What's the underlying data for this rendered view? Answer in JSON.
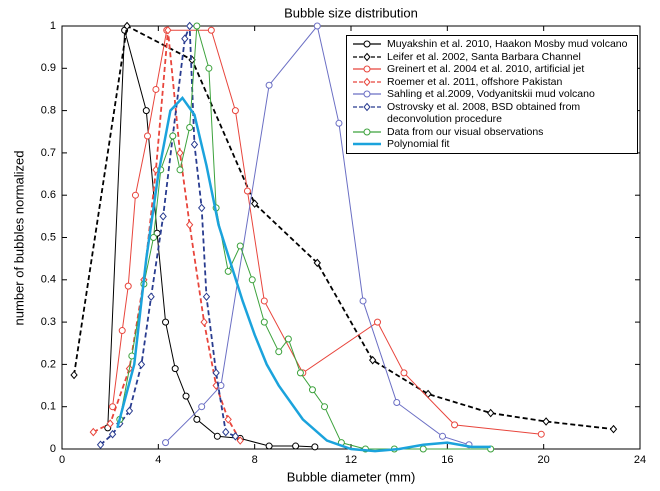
{
  "chart_data": {
    "type": "line",
    "title": "Bubble size distribution",
    "x_label": "Bubble diameter (mm)",
    "y_label": "number of bubbles  normalized",
    "xlim": [
      0,
      24
    ],
    "xticks": [
      0,
      4,
      8,
      12,
      16,
      20,
      24
    ],
    "ylim": [
      0,
      1
    ],
    "yticks": [
      0,
      0.1,
      0.2,
      0.3,
      0.4,
      0.5,
      0.6,
      0.7,
      0.8,
      0.9,
      1
    ],
    "legend": "upper right",
    "series": [
      {
        "name": "Muyakshin et al. 2010, Haakon Mosby mud volcano",
        "color": "#000000",
        "dashed": false,
        "marker": "circle",
        "x": [
          1.9,
          2.6,
          3.5,
          3.95,
          4.3,
          4.7,
          5.15,
          5.6,
          6.45,
          7.4,
          8.6,
          9.7,
          10.5
        ],
        "values": [
          0.05,
          0.99,
          0.8,
          0.51,
          0.3,
          0.19,
          0.125,
          0.07,
          0.03,
          0.025,
          0.007,
          0.007,
          0.005
        ]
      },
      {
        "name": "Leifer et al. 2002, Santa Barbara Channel",
        "color": "#000000",
        "dashed": true,
        "marker": "diamond",
        "x": [
          0.5,
          2.7,
          5.4,
          8.0,
          10.6,
          12.9,
          15.2,
          17.8,
          20.1,
          22.9
        ],
        "values": [
          0.175,
          1.0,
          0.92,
          0.58,
          0.44,
          0.21,
          0.13,
          0.085,
          0.065,
          0.047
        ]
      },
      {
        "name": "Greinert et al. 2004 et al. 2010, artificial jet",
        "color": "#e8453c",
        "dashed": false,
        "marker": "circle",
        "x": [
          2.1,
          2.5,
          2.75,
          3.05,
          3.55,
          3.9,
          4.35,
          6.2,
          7.2,
          7.7,
          8.4,
          10.0,
          13.1,
          14.2,
          16.3,
          19.9
        ],
        "values": [
          0.1,
          0.28,
          0.385,
          0.6,
          0.74,
          0.85,
          0.99,
          0.99,
          0.8,
          0.61,
          0.35,
          0.18,
          0.3,
          0.18,
          0.057,
          0.035
        ]
      },
      {
        "name": "Roemer et al. 2011, offshore Pakistan",
        "color": "#e8453c",
        "dashed": true,
        "marker": "diamond",
        "x": [
          1.3,
          2.0,
          2.8,
          3.4,
          3.9,
          4.4,
          4.9,
          5.3,
          5.9,
          6.4,
          6.9,
          7.4
        ],
        "values": [
          0.04,
          0.06,
          0.19,
          0.4,
          0.66,
          0.99,
          0.7,
          0.53,
          0.3,
          0.15,
          0.07,
          0.02
        ]
      },
      {
        "name": "Sahling et al.2009, Vodyanitskii mud volcano",
        "color": "#6b6fc4",
        "dashed": false,
        "marker": "circle",
        "x": [
          4.3,
          5.8,
          6.6,
          8.6,
          10.6,
          11.5,
          12.5,
          13.9,
          15.8,
          16.9
        ],
        "values": [
          0.015,
          0.1,
          0.15,
          0.86,
          1.0,
          0.77,
          0.35,
          0.11,
          0.03,
          0.01
        ]
      },
      {
        "name": "Ostrovsky et al. 2008, BSD obtained from deconvolution procedure",
        "color": "#283b8f",
        "dashed": true,
        "marker": "diamond",
        "x": [
          1.6,
          2.1,
          2.4,
          2.8,
          3.3,
          3.7,
          4.2,
          4.6,
          5.1,
          5.3,
          5.5,
          5.8,
          6.0,
          6.4,
          6.8,
          7.2
        ],
        "values": [
          0.01,
          0.035,
          0.06,
          0.09,
          0.2,
          0.36,
          0.55,
          0.74,
          0.97,
          1.0,
          0.72,
          0.57,
          0.36,
          0.18,
          0.04,
          0.03
        ]
      },
      {
        "name": "Data from our visual observations",
        "color": "#3ca23c",
        "dashed": false,
        "marker": "circle",
        "x": [
          2.4,
          2.9,
          3.4,
          3.8,
          4.1,
          4.6,
          4.9,
          5.3,
          5.6,
          6.1,
          6.4,
          6.9,
          7.4,
          7.9,
          8.4,
          9.0,
          9.4,
          9.9,
          10.4,
          10.9,
          11.6,
          12.6,
          13.8,
          15.0,
          17.8
        ],
        "values": [
          0.07,
          0.22,
          0.39,
          0.5,
          0.66,
          0.74,
          0.66,
          0.76,
          1.0,
          0.9,
          0.57,
          0.42,
          0.48,
          0.4,
          0.3,
          0.23,
          0.26,
          0.18,
          0.14,
          0.1,
          0.015,
          0.0,
          0.0,
          0.0,
          0.0
        ]
      },
      {
        "name": "Polynomial fit",
        "color": "#1ba3dc",
        "dashed": false,
        "marker": "none",
        "x": [
          2.3,
          3,
          3.5,
          4,
          4.5,
          5,
          5.5,
          6,
          6.5,
          7,
          7.5,
          8,
          8.5,
          9,
          10,
          11,
          12,
          13,
          14,
          15,
          16,
          17,
          17.8
        ],
        "values": [
          0.05,
          0.2,
          0.45,
          0.65,
          0.8,
          0.83,
          0.79,
          0.67,
          0.53,
          0.44,
          0.35,
          0.27,
          0.2,
          0.15,
          0.07,
          0.02,
          0,
          -0.005,
          0,
          0.01,
          0.015,
          0.005,
          0.005
        ]
      }
    ]
  }
}
